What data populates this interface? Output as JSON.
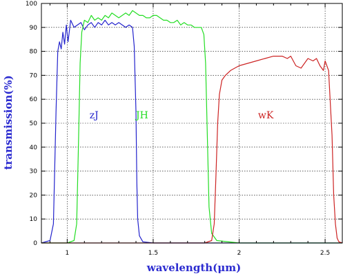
{
  "chart_data": {
    "type": "line",
    "xlabel": "wavelength(μm)",
    "ylabel": "transmission(%)",
    "xlim": [
      0.85,
      2.6
    ],
    "ylim": [
      0,
      100
    ],
    "x_ticks": [
      1,
      1.5,
      2,
      2.5
    ],
    "x_tick_labels": [
      "1",
      "1.5",
      "2",
      "2.5"
    ],
    "y_ticks": [
      0,
      10,
      20,
      30,
      40,
      50,
      60,
      70,
      80,
      90,
      100
    ],
    "y_tick_labels": [
      "0",
      "10",
      "20",
      "30",
      "40",
      "50",
      "60",
      "70",
      "80",
      "90",
      "100"
    ],
    "grid": true,
    "label_color": "#2b2bd0",
    "series": [
      {
        "name": "zJ",
        "color": "#2222cc",
        "label_at": [
          1.13,
          52
        ],
        "x": [
          0.85,
          0.9,
          0.92,
          0.935,
          0.945,
          0.955,
          0.965,
          0.975,
          0.985,
          0.995,
          1.005,
          1.02,
          1.04,
          1.06,
          1.08,
          1.1,
          1.12,
          1.14,
          1.16,
          1.18,
          1.2,
          1.22,
          1.24,
          1.26,
          1.28,
          1.3,
          1.32,
          1.34,
          1.36,
          1.38,
          1.39,
          1.4,
          1.405,
          1.41,
          1.42,
          1.44,
          1.5,
          2.6
        ],
        "y": [
          0,
          1,
          8,
          55,
          80,
          84,
          81,
          88,
          83,
          91,
          84,
          93,
          90,
          91,
          92,
          89,
          91,
          92,
          90,
          92,
          91,
          93,
          91,
          92,
          91,
          92,
          91,
          90,
          91,
          90,
          82,
          55,
          25,
          10,
          3,
          0.5,
          0,
          0
        ]
      },
      {
        "name": "JH",
        "color": "#22dd22",
        "label_at": [
          1.4,
          52
        ],
        "x": [
          0.85,
          1.0,
          1.04,
          1.055,
          1.065,
          1.075,
          1.085,
          1.1,
          1.12,
          1.14,
          1.16,
          1.18,
          1.2,
          1.22,
          1.24,
          1.26,
          1.28,
          1.3,
          1.32,
          1.34,
          1.36,
          1.38,
          1.4,
          1.42,
          1.44,
          1.46,
          1.48,
          1.5,
          1.52,
          1.54,
          1.56,
          1.58,
          1.6,
          1.62,
          1.64,
          1.66,
          1.68,
          1.7,
          1.72,
          1.74,
          1.76,
          1.78,
          1.795,
          1.805,
          1.815,
          1.825,
          1.84,
          1.87,
          2.0,
          2.6
        ],
        "y": [
          0,
          0,
          1,
          8,
          40,
          75,
          88,
          93,
          92,
          95,
          93,
          94,
          93,
          95,
          94,
          96,
          95,
          94,
          95,
          96,
          95,
          97,
          96,
          95,
          95,
          94,
          94,
          95,
          95,
          94,
          93,
          93,
          92,
          92,
          93,
          91,
          92,
          91,
          91,
          90,
          90,
          90,
          87,
          75,
          45,
          15,
          4,
          1,
          0,
          0
        ]
      },
      {
        "name": "wK",
        "color": "#cc2222",
        "label_at": [
          2.11,
          52
        ],
        "x": [
          0.85,
          1.8,
          1.84,
          1.855,
          1.865,
          1.875,
          1.885,
          1.9,
          1.92,
          1.95,
          2.0,
          2.05,
          2.1,
          2.15,
          2.2,
          2.25,
          2.28,
          2.3,
          2.33,
          2.36,
          2.4,
          2.43,
          2.45,
          2.47,
          2.49,
          2.5,
          2.52,
          2.54,
          2.55,
          2.56,
          2.57,
          2.58,
          2.6
        ],
        "y": [
          0,
          0,
          1,
          8,
          28,
          50,
          62,
          68,
          70,
          72,
          74,
          75,
          76,
          77,
          78,
          78,
          77,
          78,
          74,
          73,
          77,
          76,
          77,
          74,
          72,
          76,
          72,
          45,
          20,
          8,
          2,
          0.5,
          0
        ]
      }
    ]
  }
}
